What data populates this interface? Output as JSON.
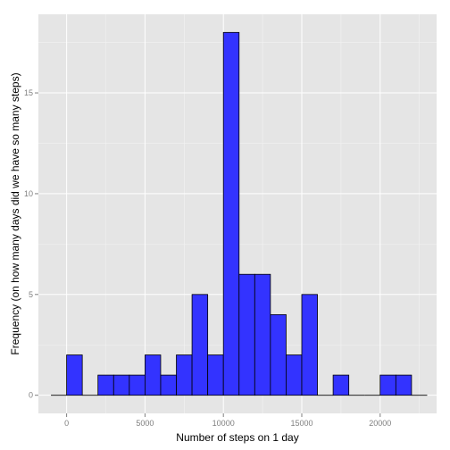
{
  "chart_data": {
    "type": "histogram",
    "title": "",
    "xlabel": "Number of steps on 1 day",
    "ylabel": "Frequency (on how many days did we have so many steps)",
    "bin_width": 1000,
    "bins": [
      {
        "start": -1000,
        "end": 0,
        "count": 0
      },
      {
        "start": 0,
        "end": 1000,
        "count": 2
      },
      {
        "start": 1000,
        "end": 2000,
        "count": 0
      },
      {
        "start": 2000,
        "end": 3000,
        "count": 1
      },
      {
        "start": 3000,
        "end": 4000,
        "count": 1
      },
      {
        "start": 4000,
        "end": 5000,
        "count": 1
      },
      {
        "start": 5000,
        "end": 6000,
        "count": 2
      },
      {
        "start": 6000,
        "end": 7000,
        "count": 1
      },
      {
        "start": 7000,
        "end": 8000,
        "count": 2
      },
      {
        "start": 8000,
        "end": 9000,
        "count": 5
      },
      {
        "start": 9000,
        "end": 10000,
        "count": 2
      },
      {
        "start": 10000,
        "end": 11000,
        "count": 18
      },
      {
        "start": 11000,
        "end": 12000,
        "count": 6
      },
      {
        "start": 12000,
        "end": 13000,
        "count": 6
      },
      {
        "start": 13000,
        "end": 14000,
        "count": 4
      },
      {
        "start": 14000,
        "end": 15000,
        "count": 2
      },
      {
        "start": 15000,
        "end": 16000,
        "count": 5
      },
      {
        "start": 16000,
        "end": 17000,
        "count": 0
      },
      {
        "start": 17000,
        "end": 18000,
        "count": 1
      },
      {
        "start": 18000,
        "end": 19000,
        "count": 0
      },
      {
        "start": 19000,
        "end": 20000,
        "count": 0
      },
      {
        "start": 20000,
        "end": 21000,
        "count": 1
      },
      {
        "start": 21000,
        "end": 22000,
        "count": 1
      },
      {
        "start": 22000,
        "end": 23000,
        "count": 0
      }
    ],
    "xlim": [
      -1800,
      23600
    ],
    "ylim": [
      -0.9,
      18.9
    ],
    "x_ticks": [
      {
        "value": 0,
        "label": "0"
      },
      {
        "value": 5000,
        "label": "5000"
      },
      {
        "value": 10000,
        "label": "10000"
      },
      {
        "value": 15000,
        "label": "15000"
      },
      {
        "value": 20000,
        "label": "20000"
      }
    ],
    "y_ticks": [
      {
        "value": 0,
        "label": "0"
      },
      {
        "value": 5,
        "label": "5"
      },
      {
        "value": 10,
        "label": "10"
      },
      {
        "value": 15,
        "label": "15"
      }
    ],
    "bar_fill": "#3333ff",
    "bar_stroke": "#000000",
    "panel_background": "#e5e5e5",
    "grid_color": "#ffffff",
    "grid": true
  }
}
